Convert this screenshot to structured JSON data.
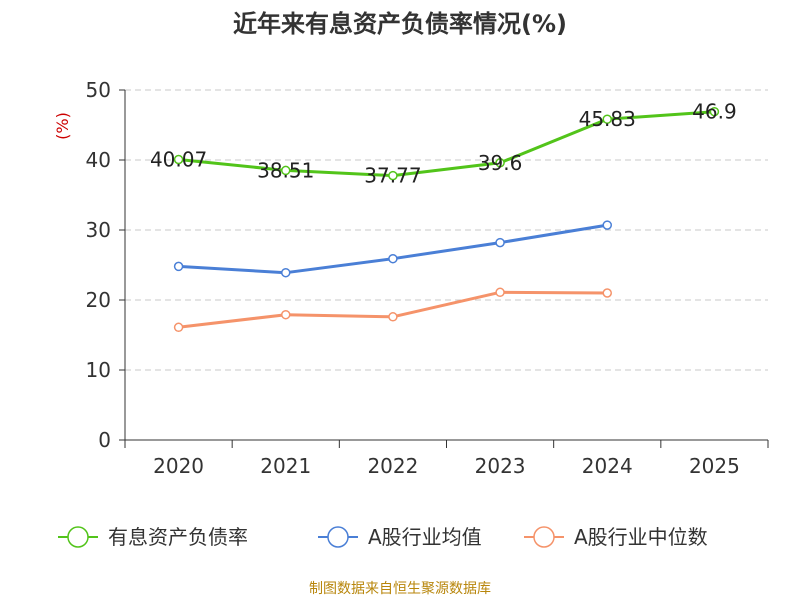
{
  "chart_data": {
    "type": "line",
    "title": "近年来有息资产负债率情况(%)",
    "ylabel": "(%)",
    "xlabel": "",
    "categories": [
      "2020",
      "2021",
      "2022",
      "2023",
      "2024",
      "2025"
    ],
    "ylim": [
      0,
      50
    ],
    "yticks": [
      0,
      10,
      20,
      30,
      40,
      50
    ],
    "grid": true,
    "legend_position": "bottom",
    "series": [
      {
        "name": "有息资产负债率",
        "color": "#52c41a",
        "values": [
          40.07,
          38.51,
          37.77,
          39.6,
          45.83,
          46.9
        ],
        "labels": [
          "40.07",
          "38.51",
          "37.77",
          "39.6",
          "45.83",
          "46.9"
        ]
      },
      {
        "name": "A股行业均值",
        "color": "#4a7fd6",
        "values": [
          24.8,
          23.9,
          25.9,
          28.2,
          30.7,
          null
        ]
      },
      {
        "name": "A股行业中位数",
        "color": "#f5936a",
        "values": [
          16.1,
          17.9,
          17.6,
          21.1,
          21.0,
          null
        ]
      }
    ],
    "source": "制图数据来自恒生聚源数据库"
  }
}
